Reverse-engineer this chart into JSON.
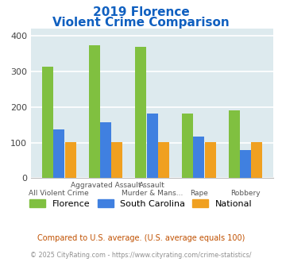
{
  "title_line1": "2019 Florence",
  "title_line2": "Violent Crime Comparison",
  "florence": [
    314,
    374,
    370,
    182,
    190
  ],
  "south_carolina": [
    138,
    157,
    182,
    116,
    78
  ],
  "national": [
    101,
    101,
    102,
    101,
    101
  ],
  "color_florence": "#80c040",
  "color_sc": "#4080e0",
  "color_national": "#f0a020",
  "ylim": [
    0,
    420
  ],
  "yticks": [
    0,
    100,
    200,
    300,
    400
  ],
  "bg_color": "#ddeaee",
  "title_color": "#1060c0",
  "footnote1": "Compared to U.S. average. (U.S. average equals 100)",
  "footnote2": "© 2025 CityRating.com - https://www.cityrating.com/crime-statistics/",
  "footnote1_color": "#c05000",
  "footnote2_color": "#909090",
  "label_row1": [
    "",
    "Aggravated Assault",
    "Assault",
    "",
    ""
  ],
  "label_row2": [
    "All Violent Crime",
    "",
    "Murder & Mans...",
    "Rape",
    "Robbery"
  ]
}
